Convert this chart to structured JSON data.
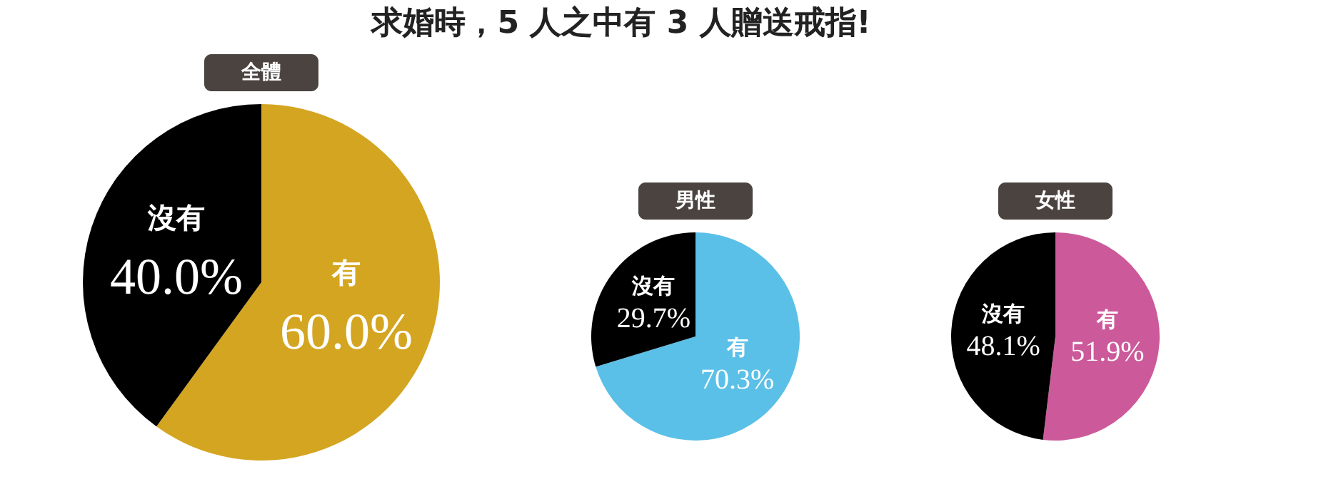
{
  "chart_data": [
    {
      "type": "other",
      "title": "求婚時，5 人之中有 3 人贈送戒指!"
    },
    {
      "type": "pie",
      "title": "全體",
      "categories": [
        "有",
        "沒有"
      ],
      "values": [
        60.0,
        40.0
      ],
      "colors": [
        "#d4a520",
        "#000000"
      ],
      "value_labels": [
        "60.0%",
        "40.0%"
      ]
    },
    {
      "type": "pie",
      "title": "男性",
      "categories": [
        "有",
        "沒有"
      ],
      "values": [
        70.3,
        29.7
      ],
      "colors": [
        "#5bc0e8",
        "#000000"
      ],
      "value_labels": [
        "70.3%",
        "29.7%"
      ]
    },
    {
      "type": "pie",
      "title": "女性",
      "categories": [
        "有",
        "沒有"
      ],
      "values": [
        51.9,
        48.1
      ],
      "colors": [
        "#cc5a9a",
        "#000000"
      ],
      "value_labels": [
        "51.9%",
        "48.1%"
      ]
    }
  ]
}
